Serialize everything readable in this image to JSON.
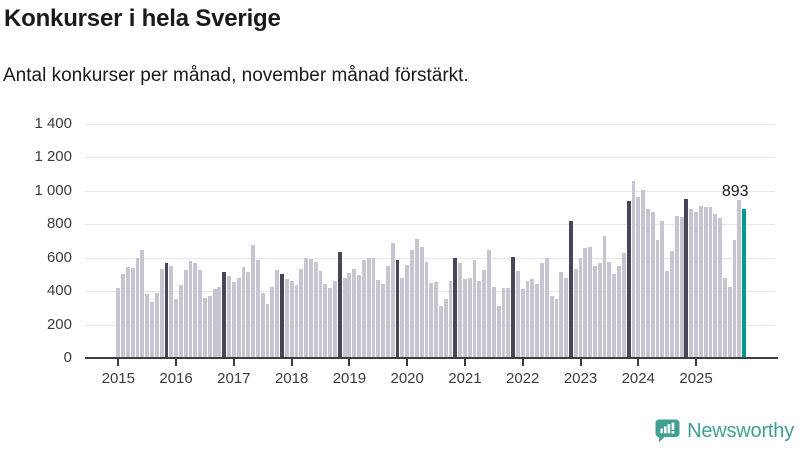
{
  "header": {
    "title": "Konkurser i hela Sverige",
    "subtitle": "Antal konkurser per månad, november månad förstärkt."
  },
  "footer": {
    "brand": "Newsworthy"
  },
  "chart_data": {
    "type": "bar",
    "title": "Konkurser i hela Sverige",
    "subtitle": "Antal konkurser per månad, november månad förstärkt.",
    "xlabel": "",
    "ylabel": "Antal konkurser",
    "ylim": [
      0,
      1400
    ],
    "grid": true,
    "ytick_labels": [
      "0",
      "200",
      "400",
      "600",
      "800",
      "1 000",
      "1 200",
      "1 400"
    ],
    "emphasized_month": 11,
    "emphasis_meaning": "november månad förstärkt",
    "annotation": {
      "label": "893",
      "value": 893,
      "point": "november 2025"
    },
    "colors": {
      "bar": "#c8c5d2",
      "emphasis": "#474659",
      "current": "#009a90",
      "grid": "#e7e7e7",
      "axis": "#3d3d3d",
      "text": "#1a1a1a",
      "brand": "#3f9e92"
    },
    "years": [
      {
        "year": "2015",
        "values": [
          420,
          500,
          545,
          535,
          600,
          645,
          385,
          335,
          390,
          530,
          570,
          550
        ]
      },
      {
        "year": "2016",
        "values": [
          350,
          435,
          525,
          580,
          570,
          525,
          360,
          370,
          410,
          425,
          515,
          490
        ]
      },
      {
        "year": "2017",
        "values": [
          455,
          480,
          545,
          515,
          675,
          585,
          390,
          320,
          425,
          525,
          500,
          470
        ]
      },
      {
        "year": "2018",
        "values": [
          460,
          435,
          530,
          595,
          590,
          575,
          520,
          445,
          420,
          460,
          635,
          480
        ]
      },
      {
        "year": "2019",
        "values": [
          510,
          530,
          495,
          585,
          600,
          595,
          465,
          445,
          550,
          685,
          585,
          480
        ]
      },
      {
        "year": "2020",
        "values": [
          555,
          645,
          710,
          665,
          575,
          450,
          455,
          310,
          355,
          460,
          595,
          570
        ]
      },
      {
        "year": "2021",
        "values": [
          470,
          480,
          585,
          460,
          525,
          645,
          425,
          310,
          420,
          420,
          605,
          520
        ]
      },
      {
        "year": "2022",
        "values": [
          415,
          460,
          470,
          445,
          570,
          600,
          370,
          355,
          515,
          480,
          820,
          530
        ]
      },
      {
        "year": "2023",
        "values": [
          595,
          655,
          665,
          550,
          565,
          730,
          575,
          500,
          550,
          625,
          940,
          1060
        ]
      },
      {
        "year": "2024",
        "values": [
          960,
          1005,
          890,
          875,
          705,
          820,
          520,
          640,
          850,
          845,
          950,
          890
        ]
      },
      {
        "year": "2025",
        "values": [
          870,
          910,
          905,
          900,
          860,
          835,
          480,
          425,
          705,
          945,
          893
        ]
      }
    ]
  }
}
